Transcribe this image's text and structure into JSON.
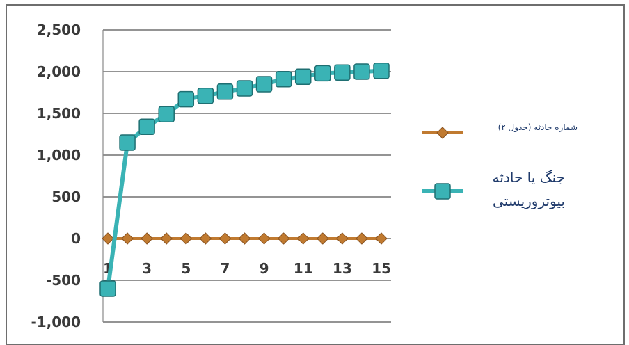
{
  "chart_data": {
    "type": "line",
    "title": "",
    "xlabel": "",
    "ylabel": "",
    "ylim": [
      -1000,
      2500
    ],
    "y_ticks": [
      "2,500",
      "2,000",
      "1,500",
      "1,000",
      "500",
      "0",
      "-500",
      "-1,000"
    ],
    "x_tick_labels": [
      "1",
      "3",
      "5",
      "7",
      "9",
      "11",
      "13",
      "15"
    ],
    "x": [
      1,
      2,
      3,
      4,
      5,
      6,
      7,
      8,
      9,
      10,
      11,
      12,
      13,
      14,
      15
    ],
    "grid": true,
    "legend_position": "right",
    "series": [
      {
        "name": "شماره حادثه (جدول ۲)",
        "color": "#c07a30",
        "marker": "diamond",
        "values": [
          0,
          0,
          0,
          0,
          0,
          0,
          0,
          0,
          0,
          0,
          0,
          0,
          0,
          0,
          0
        ]
      },
      {
        "name": "جنگ یا حادثه بیوتروریستی",
        "color": "#3ab3b5",
        "marker": "square",
        "values": [
          -600,
          1150,
          1340,
          1490,
          1670,
          1710,
          1760,
          1800,
          1850,
          1910,
          1940,
          1980,
          1990,
          2000,
          2010
        ]
      }
    ]
  }
}
